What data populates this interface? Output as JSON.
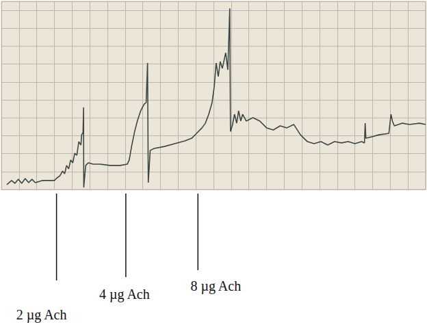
{
  "chart_data": {
    "type": "line",
    "color": "#3c4646",
    "grid": true,
    "tick_labels": false,
    "xlim": [
      0,
      24
    ],
    "xticks": [
      0,
      1,
      2,
      3,
      4,
      5,
      6,
      7,
      8,
      9,
      10,
      11,
      12,
      13,
      14,
      15,
      16,
      17,
      18,
      19,
      20,
      21,
      22,
      23,
      24
    ],
    "ylim": [
      0,
      10.5
    ],
    "yticks": [
      0,
      1,
      2,
      3,
      4,
      5,
      6,
      7,
      8,
      9,
      10
    ],
    "x": [
      0.31,
      0.58,
      0.77,
      0.96,
      1.15,
      1.35,
      1.54,
      1.73,
      1.92,
      2.31,
      2.69,
      3.0,
      3.15,
      3.31,
      3.46,
      3.58,
      3.69,
      3.81,
      3.92,
      4.04,
      4.15,
      4.27,
      4.38,
      4.5,
      4.54,
      4.62,
      4.65,
      4.66,
      4.77,
      4.92,
      5.19,
      5.58,
      6.15,
      6.73,
      7.12,
      7.23,
      7.38,
      7.54,
      7.69,
      7.88,
      8.08,
      8.19,
      8.27,
      8.31,
      8.42,
      8.65,
      9.23,
      9.81,
      10.38,
      10.77,
      11.08,
      11.35,
      11.54,
      11.73,
      11.92,
      12.04,
      12.15,
      12.27,
      12.38,
      12.5,
      12.69,
      12.81,
      12.92,
      12.96,
      13.08,
      13.19,
      13.31,
      13.42,
      13.54,
      13.65,
      13.85,
      14.23,
      14.62,
      15.0,
      15.38,
      15.77,
      16.15,
      16.54,
      16.92,
      17.31,
      17.69,
      18.08,
      18.46,
      18.85,
      19.23,
      19.62,
      20.0,
      20.38,
      20.54,
      20.58,
      20.62,
      20.96,
      21.35,
      21.92,
      22.04,
      22.12,
      22.23,
      22.69,
      23.08,
      23.65,
      24.0
    ],
    "values": [
      0.27,
      0.5,
      0.34,
      0.57,
      0.34,
      0.61,
      0.38,
      0.57,
      0.38,
      0.5,
      0.5,
      0.5,
      0.65,
      0.76,
      1.03,
      0.88,
      1.34,
      1.15,
      1.64,
      1.49,
      2.02,
      1.91,
      2.67,
      2.48,
      3.05,
      3.17,
      4.58,
      0.11,
      1.34,
      1.49,
      1.41,
      1.41,
      1.34,
      1.34,
      1.41,
      1.64,
      2.48,
      3.24,
      3.82,
      4.39,
      4.77,
      4.85,
      7.06,
      0.38,
      2.18,
      2.29,
      2.4,
      2.56,
      2.71,
      2.86,
      3.17,
      3.44,
      3.7,
      4.2,
      4.85,
      5.73,
      7.06,
      6.3,
      7.14,
      6.76,
      7.63,
      6.68,
      10.11,
      3.24,
      3.63,
      4.2,
      3.7,
      4.39,
      3.82,
      4.2,
      3.82,
      4.01,
      3.82,
      3.44,
      3.32,
      3.55,
      3.44,
      3.63,
      3.05,
      2.67,
      2.56,
      2.67,
      2.48,
      2.67,
      2.6,
      2.67,
      2.56,
      2.67,
      2.6,
      3.7,
      2.86,
      2.94,
      3.05,
      3.13,
      4.2,
      3.82,
      3.55,
      3.7,
      3.63,
      3.7,
      3.63
    ],
    "annotations": [
      {
        "text": "2 µg Ach",
        "x": 3.12
      },
      {
        "text": "4 µg Ach",
        "x": 7.04
      },
      {
        "text": "8 µg Ach",
        "x": 11.12
      }
    ]
  }
}
